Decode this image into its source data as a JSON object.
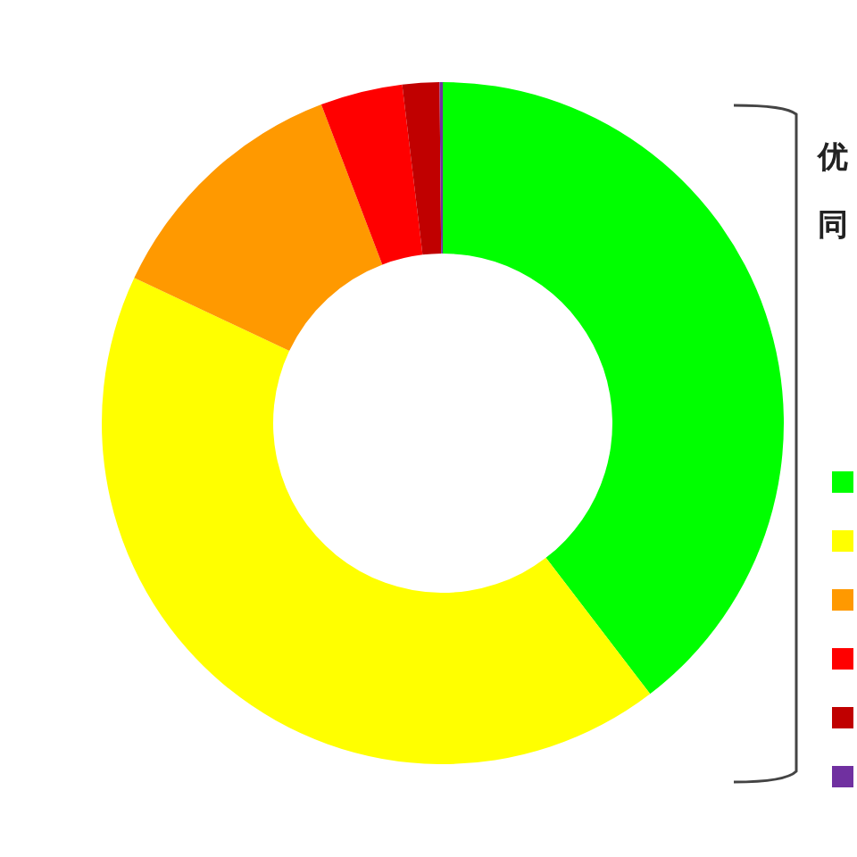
{
  "chart_data": {
    "type": "donut",
    "categories": [
      null,
      null,
      null,
      null,
      null,
      null
    ],
    "values": [
      39.6,
      42.4,
      12.2,
      3.9,
      1.75,
      0.15
    ],
    "colors": [
      "#00ff00",
      "#ffff00",
      "#ff9900",
      "#ff0000",
      "#c00000",
      "#7030a0"
    ],
    "annotations": [
      "优",
      "同"
    ]
  }
}
